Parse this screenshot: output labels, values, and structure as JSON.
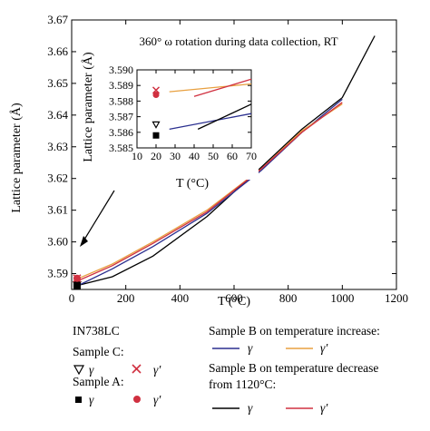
{
  "chart_data": [
    {
      "type": "line",
      "annotation": "360° ω rotation during data collection, RT",
      "xlabel": "T (°C)",
      "ylabel": "Lattice parameter (Å)",
      "xlim": [
        0,
        1200
      ],
      "ylim": [
        3.585,
        3.67
      ],
      "xticks": [
        0,
        200,
        400,
        600,
        800,
        1000,
        1200
      ],
      "yticks": [
        3.59,
        3.6,
        3.61,
        3.62,
        3.63,
        3.64,
        3.65,
        3.66,
        3.67
      ],
      "ytick_labels": [
        "3.59",
        "3.60",
        "3.61",
        "3.62",
        "3.63",
        "3.64",
        "3.65",
        "3.66",
        "3.67"
      ],
      "series": [
        {
          "color": "#000000",
          "x": [
            20,
            150,
            300,
            500,
            700,
            850,
            1000,
            1120
          ],
          "y": [
            3.5862,
            3.589,
            3.5955,
            3.608,
            3.6235,
            3.6355,
            3.6455,
            3.665
          ]
        },
        {
          "color": "#2b2f8f",
          "x": [
            25,
            150,
            300,
            500,
            700,
            850,
            1000
          ],
          "y": [
            3.5863,
            3.5915,
            3.5985,
            3.609,
            3.6225,
            3.6345,
            3.645
          ]
        },
        {
          "color": "#e8a040",
          "x": [
            25,
            150,
            300,
            500,
            700,
            850,
            1000
          ],
          "y": [
            3.5885,
            3.593,
            3.6,
            3.61,
            3.623,
            3.635,
            3.6435
          ]
        },
        {
          "color": "#d03040",
          "x": [
            30,
            150,
            300,
            500,
            700,
            850,
            1000
          ],
          "y": [
            3.588,
            3.5925,
            3.5995,
            3.6095,
            3.623,
            3.6345,
            3.644
          ]
        }
      ],
      "markers": [
        {
          "shape": "triangle-down-open",
          "color": "#000000",
          "x": 20,
          "y": 3.5865
        },
        {
          "shape": "x",
          "color": "#d03040",
          "x": 20,
          "y": 3.5885
        },
        {
          "shape": "square",
          "color": "#000000",
          "x": 20,
          "y": 3.5862
        },
        {
          "shape": "circle",
          "color": "#d03040",
          "x": 20,
          "y": 3.5885
        }
      ]
    },
    {
      "type": "line",
      "xlabel": "T (°C)",
      "ylabel": "Lattice parameter (Å)",
      "xlim": [
        10,
        70
      ],
      "ylim": [
        3.585,
        3.59
      ],
      "xticks": [
        10,
        20,
        30,
        40,
        50,
        60,
        70
      ],
      "yticks": [
        3.585,
        3.586,
        3.587,
        3.588,
        3.589,
        3.59
      ],
      "ytick_labels": [
        "3.585",
        "3.586",
        "3.587",
        "3.588",
        "3.589",
        "3.590"
      ],
      "series": [
        {
          "color": "#2b2f8f",
          "x": [
            27,
            70
          ],
          "y": [
            3.5862,
            3.5872
          ]
        },
        {
          "color": "#000000",
          "x": [
            42,
            70
          ],
          "y": [
            3.5862,
            3.5878
          ]
        },
        {
          "color": "#e8a040",
          "x": [
            27,
            70
          ],
          "y": [
            3.5886,
            3.5891
          ]
        },
        {
          "color": "#d03040",
          "x": [
            40,
            70
          ],
          "y": [
            3.5883,
            3.5894
          ]
        }
      ],
      "markers": [
        {
          "shape": "x",
          "color": "#d03040",
          "x": 20,
          "y": 3.5887
        },
        {
          "shape": "circle",
          "color": "#d03040",
          "x": 20,
          "y": 3.5884
        },
        {
          "shape": "triangle-down-open",
          "color": "#000000",
          "x": 20,
          "y": 3.5865
        },
        {
          "shape": "square",
          "color": "#000000",
          "x": 20,
          "y": 3.5858
        }
      ]
    }
  ],
  "legend": {
    "left_title": "IN738LC",
    "sample_c": "Sample C:",
    "sample_a": "Sample A:",
    "gamma": "γ",
    "gamma_prime": "γ′",
    "increase_title": "Sample B on temperature increase:",
    "decrease_title_1": "Sample B on temperature decrease",
    "decrease_title_2": "from 1120°C:"
  },
  "colors": {
    "black": "#000000",
    "navy": "#2b2f8f",
    "orange": "#e8a040",
    "red": "#d03040"
  }
}
